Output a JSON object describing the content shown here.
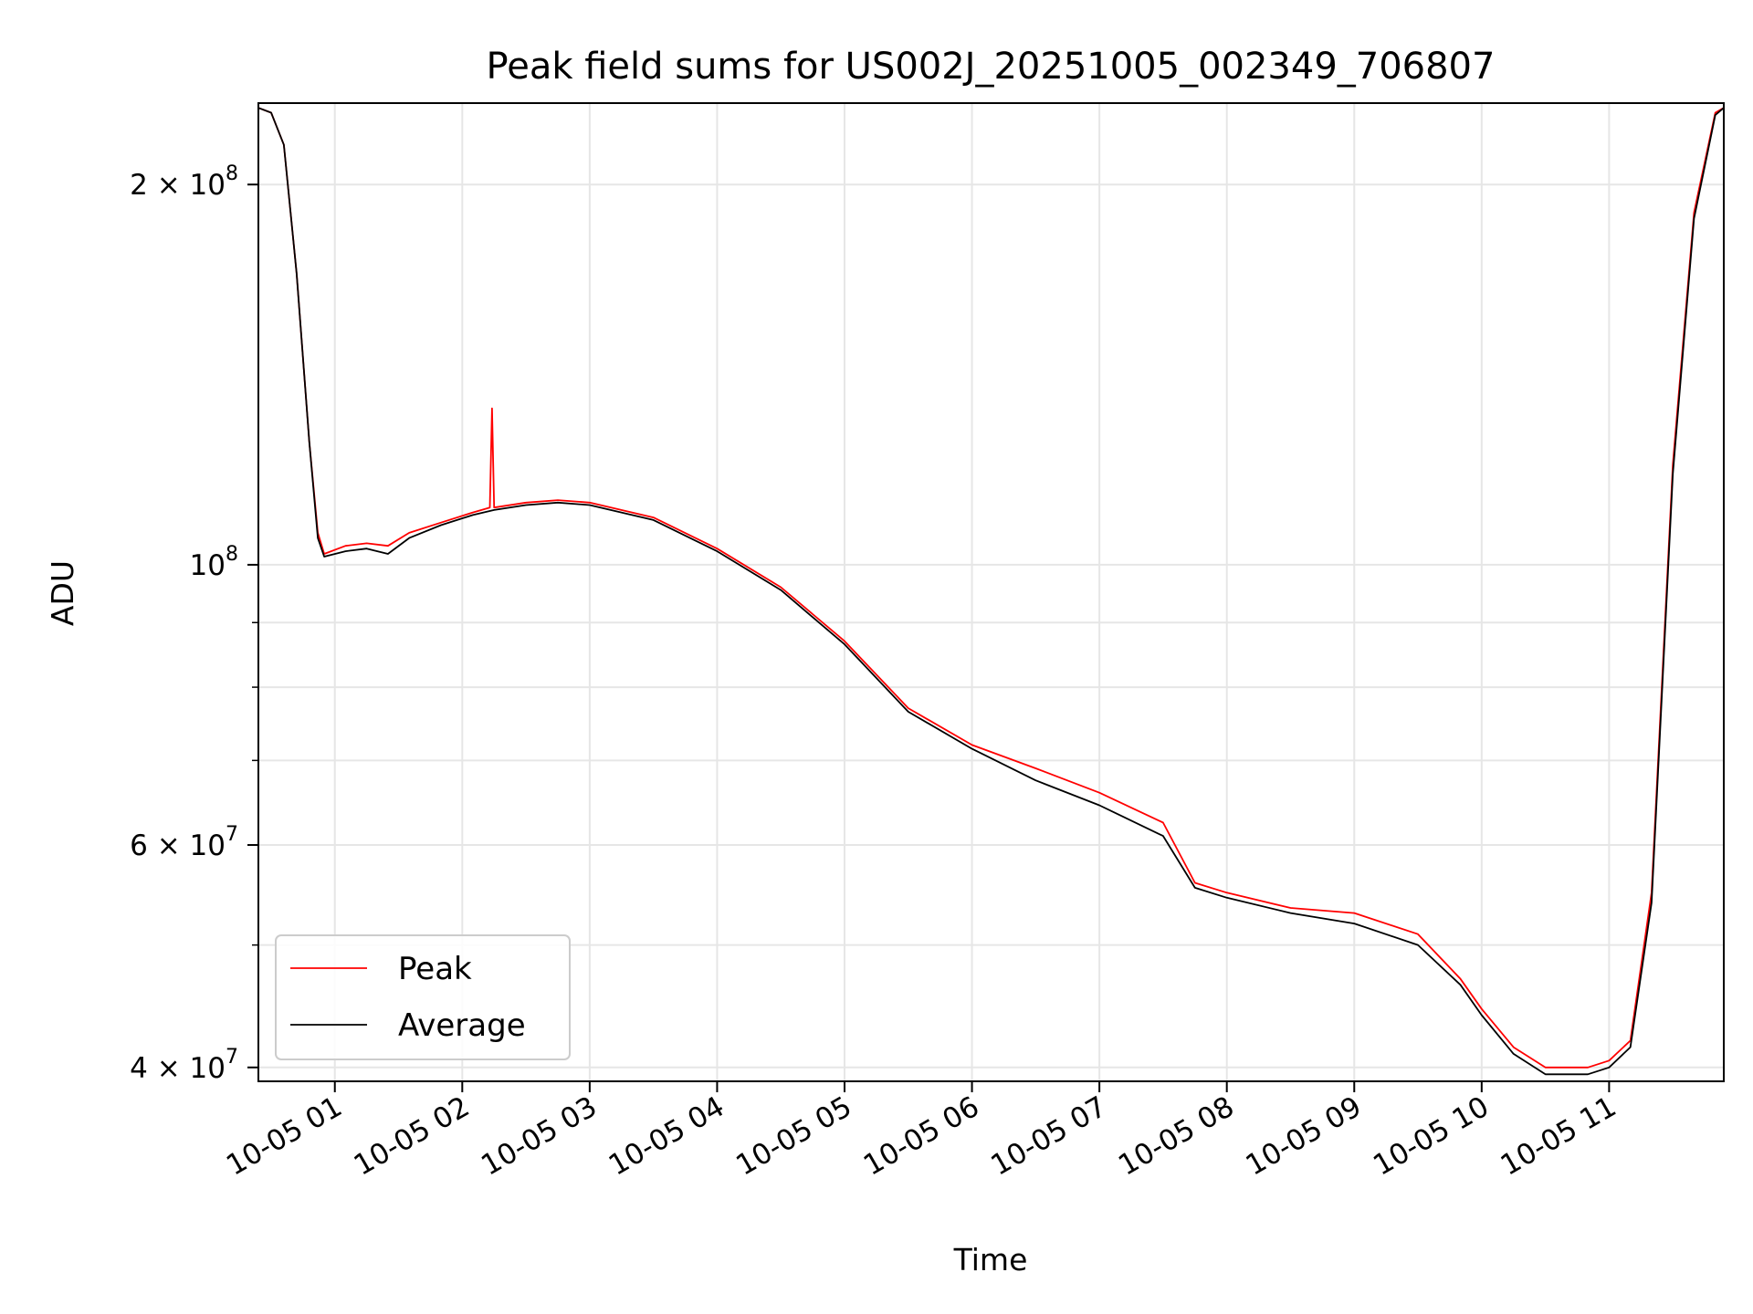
{
  "chart_data": {
    "type": "line",
    "title": "Peak field sums for US002J_20251005_002349_706807",
    "xlabel": "Time",
    "ylabel": "ADU",
    "yscale": "log",
    "xlim": [
      "2025-10-05 00:24",
      "2025-10-05 11:54"
    ],
    "ylim": [
      39000000,
      232000000
    ],
    "grid": true,
    "legend": "lower-left",
    "x_ticks": [
      {
        "t": "2025-10-05 01:00",
        "label": "10-05 01"
      },
      {
        "t": "2025-10-05 02:00",
        "label": "10-05 02"
      },
      {
        "t": "2025-10-05 03:00",
        "label": "10-05 03"
      },
      {
        "t": "2025-10-05 04:00",
        "label": "10-05 04"
      },
      {
        "t": "2025-10-05 05:00",
        "label": "10-05 05"
      },
      {
        "t": "2025-10-05 06:00",
        "label": "10-05 06"
      },
      {
        "t": "2025-10-05 07:00",
        "label": "10-05 07"
      },
      {
        "t": "2025-10-05 08:00",
        "label": "10-05 08"
      },
      {
        "t": "2025-10-05 09:00",
        "label": "10-05 09"
      },
      {
        "t": "2025-10-05 10:00",
        "label": "10-05 10"
      },
      {
        "t": "2025-10-05 11:00",
        "label": "10-05 11"
      }
    ],
    "y_major_ticks": [
      {
        "value": 40000000,
        "base": "4 × 10",
        "exp": "7"
      },
      {
        "value": 60000000,
        "base": "6 × 10",
        "exp": "7"
      },
      {
        "value": 100000000,
        "base": "10",
        "exp": "8"
      },
      {
        "value": 200000000,
        "base": "2 × 10",
        "exp": "8"
      }
    ],
    "y_minor_ticks": [
      50000000,
      70000000,
      80000000,
      90000000
    ],
    "series": [
      {
        "name": "Peak",
        "color": "#ff0000",
        "x": [
          "2025-10-05 00:24",
          "2025-10-05 00:30",
          "2025-10-05 00:36",
          "2025-10-05 00:42",
          "2025-10-05 00:48",
          "2025-10-05 00:52",
          "2025-10-05 00:55",
          "2025-10-05 01:05",
          "2025-10-05 01:15",
          "2025-10-05 01:25",
          "2025-10-05 01:35",
          "2025-10-05 01:50",
          "2025-10-05 02:05",
          "2025-10-05 02:13",
          "2025-10-05 02:14",
          "2025-10-05 02:15",
          "2025-10-05 02:30",
          "2025-10-05 02:45",
          "2025-10-05 03:00",
          "2025-10-05 03:30",
          "2025-10-05 04:00",
          "2025-10-05 04:30",
          "2025-10-05 05:00",
          "2025-10-05 05:30",
          "2025-10-05 06:00",
          "2025-10-05 06:30",
          "2025-10-05 07:00",
          "2025-10-05 07:30",
          "2025-10-05 07:45",
          "2025-10-05 08:00",
          "2025-10-05 08:30",
          "2025-10-05 09:00",
          "2025-10-05 09:30",
          "2025-10-05 09:50",
          "2025-10-05 10:00",
          "2025-10-05 10:15",
          "2025-10-05 10:30",
          "2025-10-05 10:50",
          "2025-10-05 11:00",
          "2025-10-05 11:10",
          "2025-10-05 11:20",
          "2025-10-05 11:30",
          "2025-10-05 11:40",
          "2025-10-05 11:50",
          "2025-10-05 11:54"
        ],
        "values": [
          230000000,
          228000000,
          215000000,
          170000000,
          125000000,
          106000000,
          102000000,
          103500000,
          104000000,
          103500000,
          106000000,
          108000000,
          110000000,
          111000000,
          133000000,
          111000000,
          112000000,
          112500000,
          112000000,
          109000000,
          103000000,
          96000000,
          87000000,
          77000000,
          72000000,
          69000000,
          66000000,
          62500000,
          56000000,
          55000000,
          53500000,
          53000000,
          51000000,
          47000000,
          44500000,
          41500000,
          40000000,
          40000000,
          40500000,
          42000000,
          55000000,
          120000000,
          190000000,
          228000000,
          230000000
        ]
      },
      {
        "name": "Average",
        "color": "#000000",
        "x": [
          "2025-10-05 00:24",
          "2025-10-05 00:30",
          "2025-10-05 00:36",
          "2025-10-05 00:42",
          "2025-10-05 00:48",
          "2025-10-05 00:52",
          "2025-10-05 00:55",
          "2025-10-05 01:05",
          "2025-10-05 01:15",
          "2025-10-05 01:25",
          "2025-10-05 01:35",
          "2025-10-05 01:50",
          "2025-10-05 02:05",
          "2025-10-05 02:15",
          "2025-10-05 02:30",
          "2025-10-05 02:45",
          "2025-10-05 03:00",
          "2025-10-05 03:30",
          "2025-10-05 04:00",
          "2025-10-05 04:30",
          "2025-10-05 05:00",
          "2025-10-05 05:30",
          "2025-10-05 06:00",
          "2025-10-05 06:30",
          "2025-10-05 07:00",
          "2025-10-05 07:30",
          "2025-10-05 07:45",
          "2025-10-05 08:00",
          "2025-10-05 08:30",
          "2025-10-05 09:00",
          "2025-10-05 09:30",
          "2025-10-05 09:50",
          "2025-10-05 10:00",
          "2025-10-05 10:15",
          "2025-10-05 10:30",
          "2025-10-05 10:50",
          "2025-10-05 11:00",
          "2025-10-05 11:10",
          "2025-10-05 11:20",
          "2025-10-05 11:30",
          "2025-10-05 11:40",
          "2025-10-05 11:50",
          "2025-10-05 11:54"
        ],
        "values": [
          230000000,
          228000000,
          215000000,
          170000000,
          125000000,
          105000000,
          101500000,
          102500000,
          103000000,
          102000000,
          105000000,
          107500000,
          109500000,
          110500000,
          111500000,
          112000000,
          111500000,
          108500000,
          102500000,
          95500000,
          86500000,
          76500000,
          71500000,
          67500000,
          64500000,
          61000000,
          55500000,
          54500000,
          53000000,
          52000000,
          50000000,
          46500000,
          44000000,
          41000000,
          39500000,
          39500000,
          40000000,
          41500000,
          54000000,
          118000000,
          188000000,
          227000000,
          230000000
        ]
      }
    ]
  }
}
